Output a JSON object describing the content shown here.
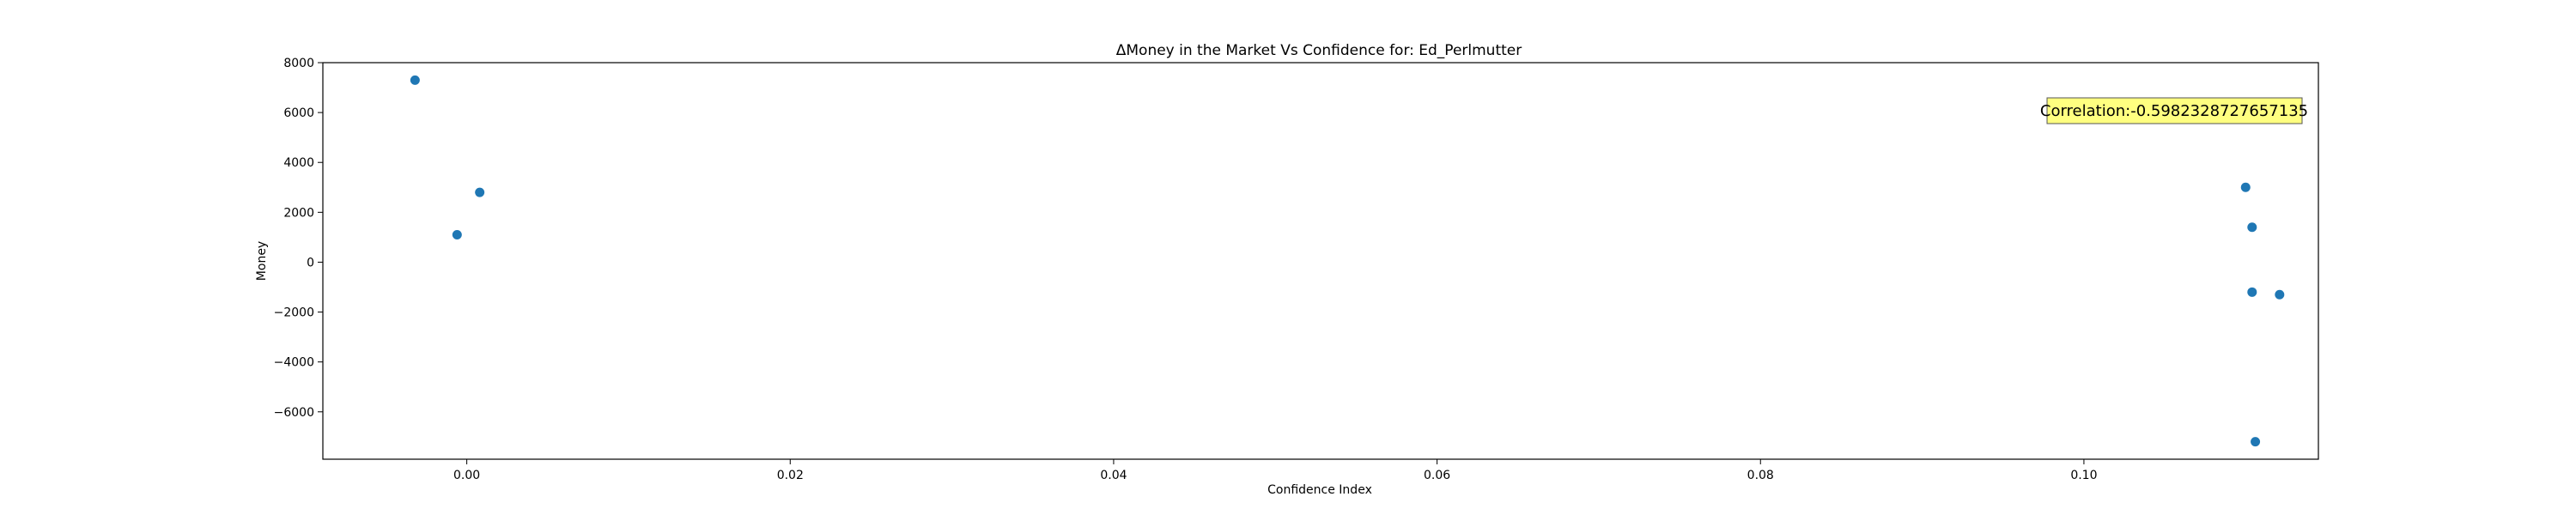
{
  "chart_data": {
    "type": "scatter",
    "title": "ΔMoney in the Market Vs Confidence for: Ed_Perlmutter",
    "xlabel": "Confidence Index",
    "ylabel": "Money",
    "xlim": [
      -0.0089,
      0.1145
    ],
    "ylim": [
      -7900,
      8000
    ],
    "xticks": [
      0.0,
      0.02,
      0.04,
      0.06,
      0.08,
      0.1
    ],
    "xtick_labels": [
      "0.00",
      "0.02",
      "0.04",
      "0.06",
      "0.08",
      "0.10"
    ],
    "yticks": [
      -6000,
      -4000,
      -2000,
      0,
      2000,
      4000,
      6000,
      8000
    ],
    "ytick_labels": [
      "−6000",
      "−4000",
      "−2000",
      "0",
      "2000",
      "4000",
      "6000",
      "8000"
    ],
    "points": [
      {
        "x": -0.0032,
        "y": 7300
      },
      {
        "x": -0.0006,
        "y": 1100
      },
      {
        "x": 0.0008,
        "y": 2800
      },
      {
        "x": 0.11,
        "y": 3000
      },
      {
        "x": 0.1104,
        "y": 1400
      },
      {
        "x": 0.1104,
        "y": -1200
      },
      {
        "x": 0.1121,
        "y": -1300
      },
      {
        "x": 0.1106,
        "y": -7200
      }
    ],
    "marker_color": "#1f77b4",
    "grid": false,
    "annotation": {
      "text": "Correlation:-0.5982328727657135",
      "background": "#ffff80"
    }
  }
}
